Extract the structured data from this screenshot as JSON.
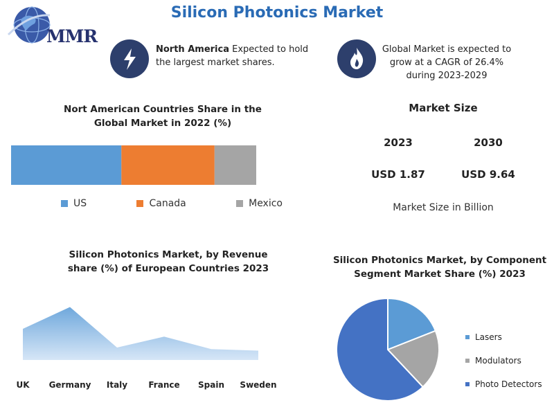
{
  "header": {
    "title": "Silicon Photonics Market",
    "logo_text": "MMR"
  },
  "callouts": {
    "left_bold": "North America",
    "left_text": " Expected to hold the largest market shares.",
    "right_text": "Global Market is expected to grow at a CAGR of 26.4% during 2023-2029"
  },
  "colors": {
    "us": "#5b9bd5",
    "canada": "#ed7d31",
    "mexico": "#a5a5a5",
    "accent": "#2a6bb5",
    "icon_bg": "#2d3f6c",
    "pie_blue": "#4472c4"
  },
  "market_size": {
    "heading": "Market Size",
    "year_a": "2023",
    "year_b": "2030",
    "value_a": "USD 1.87",
    "value_b": "USD 9.64",
    "note": "Market Size in Billion"
  },
  "chart_data": [
    {
      "type": "bar",
      "orientation": "horizontal-stacked",
      "title": "Nort American Countries Share in the Global Market in 2022 (%)",
      "series": [
        {
          "name": "US",
          "values": [
            45
          ]
        },
        {
          "name": "Canada",
          "values": [
            38
          ]
        },
        {
          "name": "Mexico",
          "values": [
            17
          ]
        }
      ],
      "legend": "bottom"
    },
    {
      "type": "area",
      "title": "Silicon Photonics Market, by Revenue share (%) of European Countries 2023",
      "categories": [
        "UK",
        "Germany",
        "Italy",
        "France",
        "Spain",
        "Sweden"
      ],
      "values": [
        20,
        34,
        8,
        15,
        7,
        6
      ],
      "ylim": [
        0,
        40
      ]
    },
    {
      "type": "pie",
      "title": "Silicon Photonics Market, by Component Segment Market Share (%) 2023",
      "labels": [
        "Lasers",
        "Modulators",
        "Photo Detectors"
      ],
      "values": [
        19,
        19,
        62
      ],
      "legend": "right"
    }
  ]
}
